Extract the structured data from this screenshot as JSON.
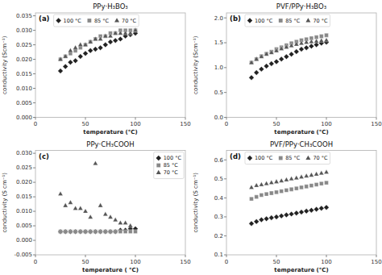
{
  "chart_data": [
    {
      "type": "scatter",
      "title": "PPy·H₃BO₃",
      "x_label": "temperature (°C)",
      "y_label": "conductivity (Scm⁻¹)",
      "annotations": [
        "(a)"
      ],
      "xlim": [
        0,
        150
      ],
      "xticks": [
        0,
        50,
        100,
        150
      ],
      "ylim": [
        0.0,
        0.036
      ],
      "yticks": [
        {
          "value": 0.0,
          "label": "0.000"
        },
        {
          "value": 0.005,
          "label": "0.005"
        },
        {
          "value": 0.01,
          "label": "0.010"
        },
        {
          "value": 0.015,
          "label": "0.015"
        },
        {
          "value": 0.02,
          "label": "0.020"
        },
        {
          "value": 0.025,
          "label": "0.025"
        },
        {
          "value": 0.03,
          "label": "0.030"
        },
        {
          "value": 0.035,
          "label": "0.035"
        }
      ],
      "legend": "upper left",
      "series": [
        {
          "name": "100 °C",
          "color": "#222222",
          "marker": "diamond",
          "x": [
            25,
            30,
            35,
            40,
            45,
            50,
            55,
            60,
            65,
            70,
            75,
            80,
            85,
            90,
            95,
            100
          ],
          "values": [
            0.016,
            0.0175,
            0.019,
            0.0195,
            0.021,
            0.022,
            0.023,
            0.0235,
            0.024,
            0.025,
            0.026,
            0.0265,
            0.027,
            0.028,
            0.0285,
            0.029
          ]
        },
        {
          "name": "85 °C",
          "color": "#888888",
          "marker": "square",
          "x": [
            25,
            30,
            35,
            40,
            45,
            50,
            55,
            60,
            65,
            70,
            75,
            80,
            85,
            90,
            95,
            100
          ],
          "values": [
            0.02,
            0.021,
            0.022,
            0.023,
            0.024,
            0.025,
            0.026,
            0.027,
            0.028,
            0.028,
            0.029,
            0.029,
            0.03,
            0.03,
            0.03,
            0.03
          ]
        },
        {
          "name": "70 °C",
          "color": "#555555",
          "marker": "triangle-up",
          "x": [
            25,
            30,
            35,
            40,
            45,
            50,
            55,
            60,
            65,
            70,
            75,
            80,
            85,
            90,
            95,
            100
          ],
          "values": [
            0.02,
            0.021,
            0.023,
            0.024,
            0.025,
            0.025,
            0.026,
            0.027,
            0.027,
            0.028,
            0.028,
            0.029,
            0.029,
            0.029,
            0.029,
            0.03
          ]
        }
      ]
    },
    {
      "type": "scatter",
      "title": "PVF/PPy·H₃BO₃",
      "x_label": "temperature (°C)",
      "y_label": "conductivity (Scm⁻¹)",
      "annotations": [
        "(b)"
      ],
      "xlim": [
        0,
        150
      ],
      "xticks": [
        0,
        50,
        100,
        150
      ],
      "ylim": [
        0,
        2.1
      ],
      "yticks": [
        {
          "value": 0,
          "label": "0.0"
        },
        0.5,
        {
          "value": 1.0,
          "label": "1.0"
        },
        1.5,
        {
          "value": 2.0,
          "label": "2.0"
        }
      ],
      "legend": "upper left",
      "series": [
        {
          "name": "100 °C",
          "color": "#222222",
          "marker": "diamond",
          "x": [
            25,
            30,
            35,
            40,
            45,
            50,
            55,
            60,
            65,
            70,
            75,
            80,
            85,
            90,
            95,
            100
          ],
          "values": [
            0.8,
            0.9,
            0.97,
            1.03,
            1.08,
            1.12,
            1.17,
            1.22,
            1.27,
            1.32,
            1.37,
            1.4,
            1.43,
            1.46,
            1.49,
            1.51
          ]
        },
        {
          "name": "85 °C",
          "color": "#888888",
          "marker": "square",
          "x": [
            25,
            30,
            35,
            40,
            45,
            50,
            55,
            60,
            65,
            70,
            75,
            80,
            85,
            90,
            95,
            100
          ],
          "values": [
            1.1,
            1.17,
            1.23,
            1.28,
            1.32,
            1.37,
            1.41,
            1.45,
            1.49,
            1.52,
            1.55,
            1.57,
            1.59,
            1.61,
            1.63,
            1.65
          ]
        },
        {
          "name": "70 °C",
          "color": "#555555",
          "marker": "triangle-up",
          "x": [
            25,
            30,
            35,
            40,
            45,
            50,
            55,
            60,
            65,
            70,
            75,
            80,
            85,
            90,
            95,
            100
          ],
          "values": [
            1.1,
            1.17,
            1.22,
            1.27,
            1.3,
            1.34,
            1.38,
            1.41,
            1.44,
            1.47,
            1.49,
            1.51,
            1.52,
            1.53,
            1.54,
            1.55
          ]
        }
      ]
    },
    {
      "type": "scatter",
      "title": "PPy·CH₃COOH",
      "x_label": "temperature ( °C)",
      "y_label": "conductivity (S cm⁻¹)",
      "annotations": [
        "(c)"
      ],
      "xlim": [
        0,
        150
      ],
      "xticks": [
        0,
        50,
        100,
        150
      ],
      "ylim": [
        -0.005,
        0.031
      ],
      "yticks": [
        {
          "value": -0.005,
          "label": "-0.005"
        },
        {
          "value": 0.0,
          "label": "0.000"
        },
        {
          "value": 0.005,
          "label": "0.005"
        },
        {
          "value": 0.01,
          "label": "0.010"
        },
        {
          "value": 0.015,
          "label": "0.015"
        },
        {
          "value": 0.02,
          "label": "0.020"
        },
        {
          "value": 0.025,
          "label": "0.025"
        },
        {
          "value": 0.03,
          "label": "0.030"
        }
      ],
      "legend": "upper right",
      "series": [
        {
          "name": "100 °C",
          "color": "#222222",
          "marker": "diamond",
          "x": [
            25,
            30,
            35,
            40,
            45,
            50,
            55,
            60,
            65,
            70,
            75,
            80,
            85,
            90,
            95,
            100
          ],
          "values": [
            0.003,
            0.003,
            0.003,
            0.003,
            0.003,
            0.003,
            0.003,
            0.003,
            0.003,
            0.003,
            0.003,
            0.003,
            0.0035,
            0.0035,
            0.004,
            0.004
          ]
        },
        {
          "name": "85 °C",
          "color": "#888888",
          "marker": "square",
          "x": [
            25,
            30,
            35,
            40,
            45,
            50,
            55,
            60,
            65,
            70,
            75,
            80,
            85,
            90,
            95,
            100
          ],
          "values": [
            0.003,
            0.003,
            0.003,
            0.003,
            0.003,
            0.003,
            0.003,
            0.003,
            0.003,
            0.003,
            0.003,
            0.003,
            0.003,
            0.003,
            0.003,
            0.003
          ]
        },
        {
          "name": "70 °C",
          "color": "#555555",
          "marker": "triangle-up",
          "x": [
            25,
            30,
            35,
            40,
            45,
            50,
            55,
            60,
            65,
            70,
            75,
            80,
            85,
            90,
            95
          ],
          "values": [
            0.016,
            0.012,
            0.013,
            0.011,
            0.011,
            0.01,
            0.008,
            0.0265,
            0.012,
            0.009,
            0.008,
            0.007,
            0.006,
            0.006,
            0.005
          ]
        }
      ]
    },
    {
      "type": "scatter",
      "title": "PVF/PPy·CH₃COOH",
      "x_label": "temperature (°C)",
      "y_label": "conductivity (S cm⁻¹)",
      "annotations": [
        "(d)"
      ],
      "xlim": [
        0,
        150
      ],
      "xticks": [
        0,
        50,
        100,
        150
      ],
      "ylim": [
        0.1,
        0.65
      ],
      "yticks": [
        0.1,
        0.2,
        0.3,
        0.4,
        0.5,
        0.6
      ],
      "legend": "upper left",
      "series": [
        {
          "name": "100 °C",
          "color": "#222222",
          "marker": "diamond",
          "x": [
            25,
            30,
            35,
            40,
            45,
            50,
            55,
            60,
            65,
            70,
            75,
            80,
            85,
            90,
            95,
            100
          ],
          "values": [
            0.265,
            0.275,
            0.285,
            0.29,
            0.295,
            0.3,
            0.305,
            0.31,
            0.315,
            0.32,
            0.325,
            0.33,
            0.335,
            0.34,
            0.345,
            0.35
          ]
        },
        {
          "name": "85 °C",
          "color": "#888888",
          "marker": "square",
          "x": [
            25,
            30,
            35,
            40,
            45,
            50,
            55,
            60,
            65,
            70,
            75,
            80,
            85,
            90,
            95,
            100
          ],
          "values": [
            0.395,
            0.405,
            0.415,
            0.42,
            0.425,
            0.43,
            0.435,
            0.44,
            0.445,
            0.45,
            0.455,
            0.46,
            0.465,
            0.47,
            0.475,
            0.48
          ]
        },
        {
          "name": "70 °C",
          "color": "#555555",
          "marker": "triangle-up",
          "x": [
            25,
            30,
            35,
            40,
            45,
            50,
            55,
            60,
            65,
            70,
            75,
            80,
            85,
            90,
            95,
            100
          ],
          "values": [
            0.455,
            0.465,
            0.47,
            0.475,
            0.48,
            0.485,
            0.49,
            0.495,
            0.5,
            0.505,
            0.51,
            0.515,
            0.52,
            0.525,
            0.53,
            0.535
          ]
        }
      ]
    }
  ]
}
